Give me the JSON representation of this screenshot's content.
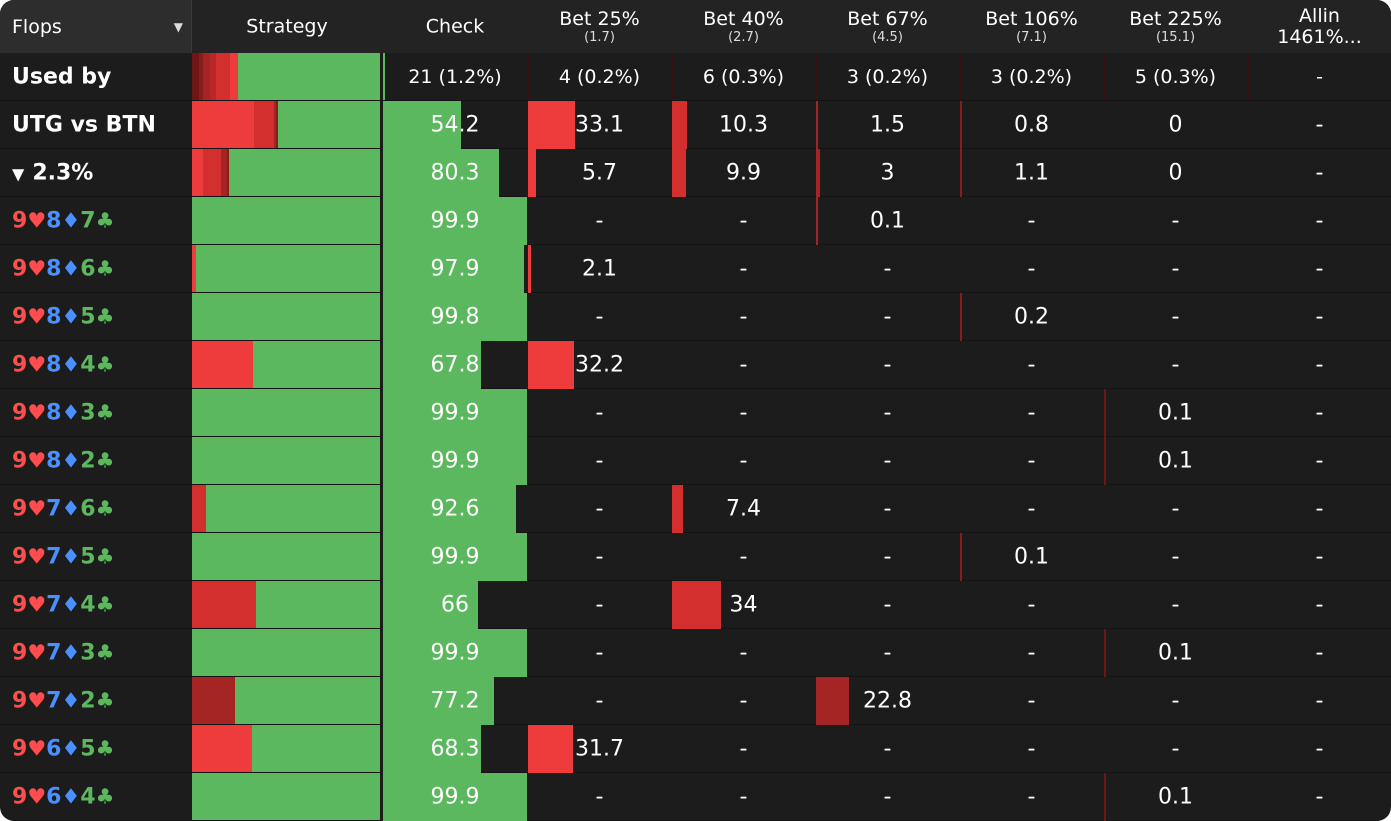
{
  "header": {
    "flops_label": "Flops",
    "strategy_label": "Strategy",
    "check_label": "Check",
    "columns": [
      {
        "label": "Bet 25%",
        "sub": "(1.7)"
      },
      {
        "label": "Bet 40%",
        "sub": "(2.7)"
      },
      {
        "label": "Bet 67%",
        "sub": "(4.5)"
      },
      {
        "label": "Bet 106%",
        "sub": "(7.1)"
      },
      {
        "label": "Bet 225%",
        "sub": "(15.1)"
      },
      {
        "label": "Allin",
        "sub": "1461%..."
      }
    ]
  },
  "colors": {
    "check": "#5cb85f",
    "bet25": "#ee3b3b",
    "bet40": "#d42f2f",
    "bet67": "#a52424",
    "bet106": "#8a1c1c",
    "bet225": "#6e1515",
    "hearts": "#ff4c4c",
    "diamonds": "#4a90ff",
    "clubs": "#5cb85f",
    "background": "#1c1c1c"
  },
  "summary_rows": [
    {
      "id": "used-by",
      "label": "Used by",
      "strategy": [
        0,
        0,
        0,
        0,
        0,
        0,
        0
      ],
      "strategy_segments": [
        7,
        4,
        7,
        6,
        14,
        8
      ],
      "check": "21 (1.2%)",
      "bets": [
        "4 (0.2%)",
        "6 (0.3%)",
        "3 (0.2%)",
        "3 (0.2%)",
        "5 (0.3%)",
        "-"
      ]
    },
    {
      "id": "utg-vs-btn",
      "label": "UTG vs BTN",
      "check_value": 54.2,
      "check": "54.2",
      "bet_values": [
        33.1,
        10.3,
        1.5,
        0.8,
        0,
        0
      ],
      "bets": [
        "33.1",
        "10.3",
        "1.5",
        "0.8",
        "0",
        "-"
      ]
    },
    {
      "id": "filter",
      "label": "2.3%",
      "check_value": 80.3,
      "check": "80.3",
      "bet_values": [
        5.7,
        9.9,
        3,
        1.1,
        0,
        0
      ],
      "bets": [
        "5.7",
        "9.9",
        "3",
        "1.1",
        "0",
        "-"
      ]
    }
  ],
  "flops": [
    {
      "cards": [
        "9",
        "8",
        "7"
      ],
      "check_value": 99.9,
      "check": "99.9",
      "bet_values": [
        0,
        0,
        0.1,
        0,
        0,
        0
      ],
      "bets": [
        "-",
        "-",
        "0.1",
        "-",
        "-",
        "-"
      ]
    },
    {
      "cards": [
        "9",
        "8",
        "6"
      ],
      "check_value": 97.9,
      "check": "97.9",
      "bet_values": [
        2.1,
        0,
        0,
        0,
        0,
        0
      ],
      "bets": [
        "2.1",
        "-",
        "-",
        "-",
        "-",
        "-"
      ]
    },
    {
      "cards": [
        "9",
        "8",
        "5"
      ],
      "check_value": 99.8,
      "check": "99.8",
      "bet_values": [
        0,
        0,
        0,
        0.2,
        0,
        0
      ],
      "bets": [
        "-",
        "-",
        "-",
        "0.2",
        "-",
        "-"
      ]
    },
    {
      "cards": [
        "9",
        "8",
        "4"
      ],
      "check_value": 67.8,
      "check": "67.8",
      "bet_values": [
        32.2,
        0,
        0,
        0,
        0,
        0
      ],
      "bets": [
        "32.2",
        "-",
        "-",
        "-",
        "-",
        "-"
      ]
    },
    {
      "cards": [
        "9",
        "8",
        "3"
      ],
      "check_value": 99.9,
      "check": "99.9",
      "bet_values": [
        0,
        0,
        0,
        0,
        0.1,
        0
      ],
      "bets": [
        "-",
        "-",
        "-",
        "-",
        "0.1",
        "-"
      ]
    },
    {
      "cards": [
        "9",
        "8",
        "2"
      ],
      "check_value": 99.9,
      "check": "99.9",
      "bet_values": [
        0,
        0,
        0,
        0,
        0.1,
        0
      ],
      "bets": [
        "-",
        "-",
        "-",
        "-",
        "0.1",
        "-"
      ]
    },
    {
      "cards": [
        "9",
        "7",
        "6"
      ],
      "check_value": 92.6,
      "check": "92.6",
      "bet_values": [
        0,
        7.4,
        0,
        0,
        0,
        0
      ],
      "bets": [
        "-",
        "7.4",
        "-",
        "-",
        "-",
        "-"
      ]
    },
    {
      "cards": [
        "9",
        "7",
        "5"
      ],
      "check_value": 99.9,
      "check": "99.9",
      "bet_values": [
        0,
        0,
        0,
        0.1,
        0,
        0
      ],
      "bets": [
        "-",
        "-",
        "-",
        "0.1",
        "-",
        "-"
      ]
    },
    {
      "cards": [
        "9",
        "7",
        "4"
      ],
      "check_value": 66,
      "check": "66",
      "bet_values": [
        0,
        34,
        0,
        0,
        0,
        0
      ],
      "bets": [
        "-",
        "34",
        "-",
        "-",
        "-",
        "-"
      ]
    },
    {
      "cards": [
        "9",
        "7",
        "3"
      ],
      "check_value": 99.9,
      "check": "99.9",
      "bet_values": [
        0,
        0,
        0,
        0,
        0.1,
        0
      ],
      "bets": [
        "-",
        "-",
        "-",
        "-",
        "0.1",
        "-"
      ]
    },
    {
      "cards": [
        "9",
        "7",
        "2"
      ],
      "check_value": 77.2,
      "check": "77.2",
      "bet_values": [
        0,
        0,
        22.8,
        0,
        0,
        0
      ],
      "bets": [
        "-",
        "-",
        "22.8",
        "-",
        "-",
        "-"
      ]
    },
    {
      "cards": [
        "9",
        "6",
        "5"
      ],
      "check_value": 68.3,
      "check": "68.3",
      "bet_values": [
        31.7,
        0,
        0,
        0,
        0,
        0
      ],
      "bets": [
        "31.7",
        "-",
        "-",
        "-",
        "-",
        "-"
      ]
    },
    {
      "cards": [
        "9",
        "6",
        "4"
      ],
      "check_value": 99.9,
      "check": "99.9",
      "bet_values": [
        0,
        0,
        0,
        0,
        0.1,
        0
      ],
      "bets": [
        "-",
        "-",
        "-",
        "-",
        "0.1",
        "-"
      ]
    }
  ]
}
